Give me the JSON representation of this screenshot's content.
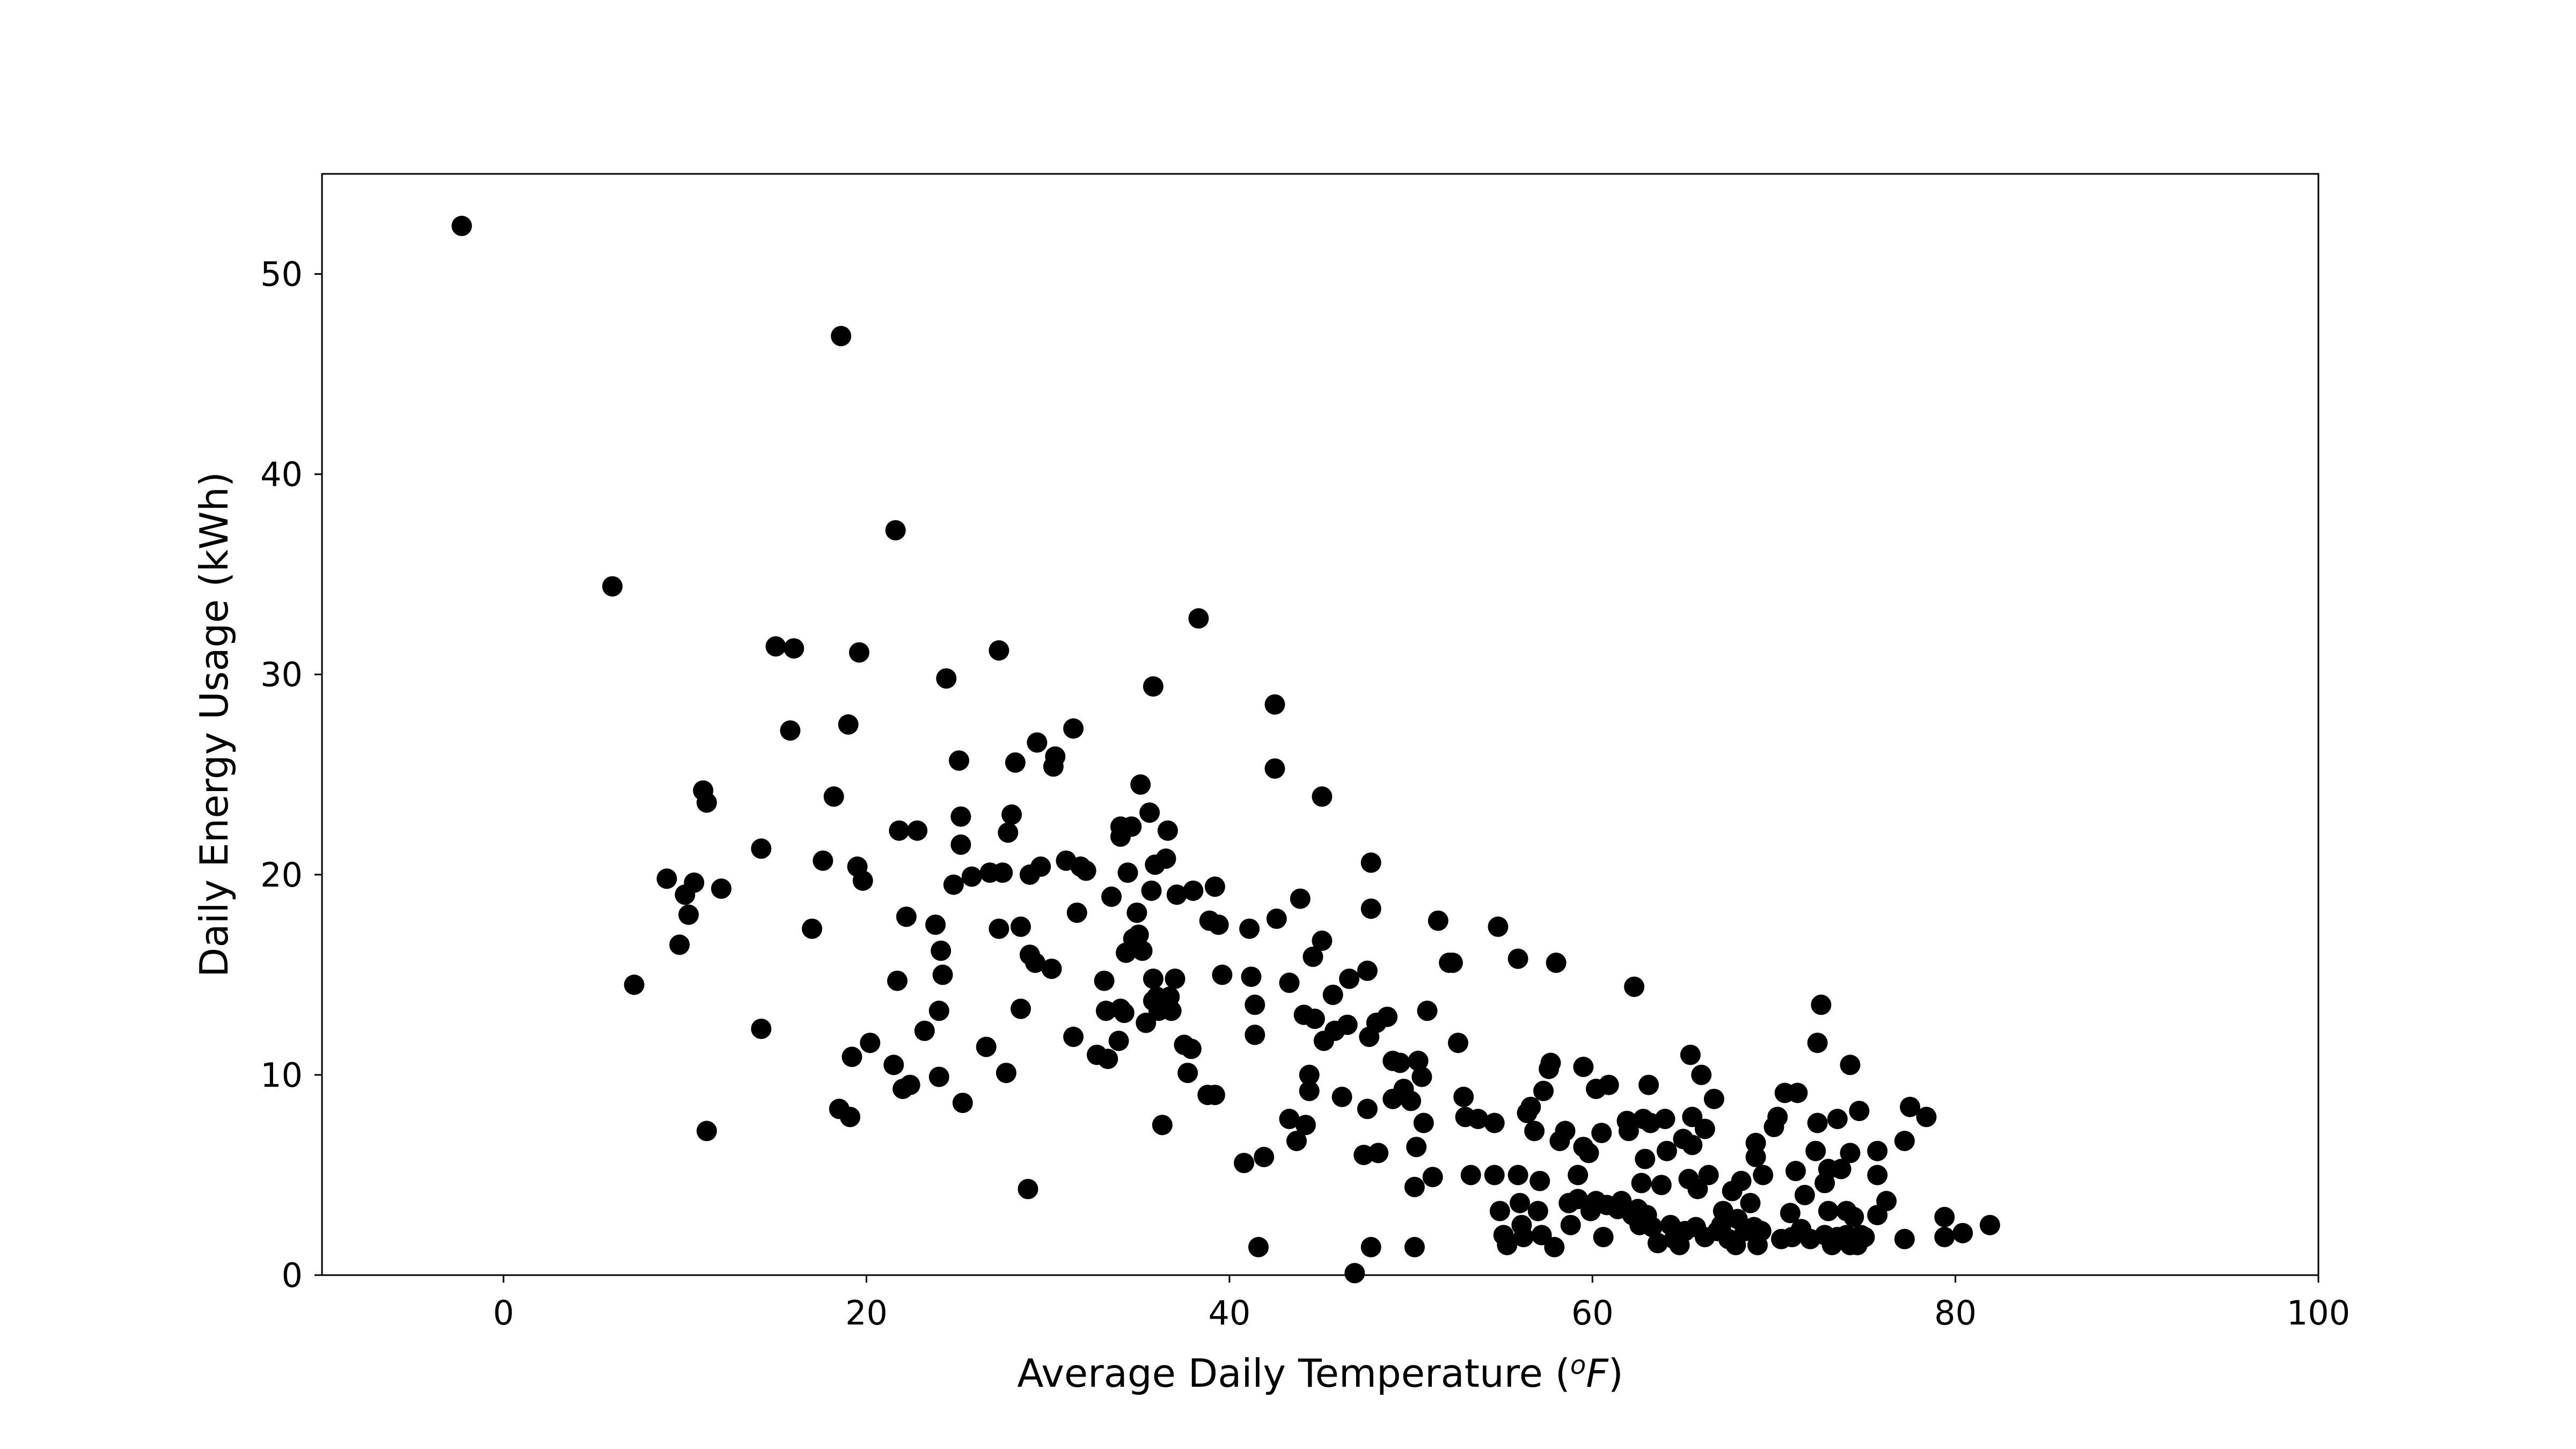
{
  "chart_data": {
    "type": "scatter",
    "title": "",
    "xlabel": "Average Daily Temperature (",
    "xlabel_unit_sup": "o",
    "xlabel_unit": "F",
    "xlabel_close": ")",
    "ylabel": "Daily Energy Usage (kWh)",
    "xlim": [
      -10,
      100
    ],
    "ylim": [
      0,
      55
    ],
    "xticks": [
      0,
      20,
      40,
      60,
      80,
      100
    ],
    "yticks": [
      0,
      10,
      20,
      30,
      40,
      50
    ],
    "grid": false,
    "marker_color": "#000000",
    "points": [
      [
        -2.3,
        52.4
      ],
      [
        6,
        34.4
      ],
      [
        7.2,
        14.5
      ],
      [
        9,
        19.8
      ],
      [
        9.7,
        16.5
      ],
      [
        10,
        19
      ],
      [
        10.2,
        18
      ],
      [
        10.5,
        19.6
      ],
      [
        11,
        24.2
      ],
      [
        11.2,
        23.6
      ],
      [
        11.2,
        7.2
      ],
      [
        12,
        19.3
      ],
      [
        14.2,
        21.3
      ],
      [
        14.2,
        12.3
      ],
      [
        15,
        31.4
      ],
      [
        15.8,
        27.2
      ],
      [
        16,
        31.3
      ],
      [
        17,
        17.3
      ],
      [
        17.6,
        20.7
      ],
      [
        18.2,
        23.9
      ],
      [
        18.5,
        8.3
      ],
      [
        18.6,
        46.9
      ],
      [
        19,
        27.5
      ],
      [
        19.1,
        7.9
      ],
      [
        19.2,
        10.9
      ],
      [
        19.5,
        20.4
      ],
      [
        19.6,
        31.1
      ],
      [
        19.8,
        19.7
      ],
      [
        20.2,
        11.6
      ],
      [
        21.5,
        10.5
      ],
      [
        21.6,
        37.2
      ],
      [
        21.7,
        14.7
      ],
      [
        21.8,
        22.2
      ],
      [
        22,
        9.3
      ],
      [
        22.2,
        17.9
      ],
      [
        22.4,
        9.5
      ],
      [
        22.8,
        22.2
      ],
      [
        23.2,
        12.2
      ],
      [
        23.8,
        17.5
      ],
      [
        24,
        13.2
      ],
      [
        24.1,
        16.2
      ],
      [
        24.2,
        15
      ],
      [
        24,
        9.9
      ],
      [
        24.4,
        29.8
      ],
      [
        24.8,
        19.5
      ],
      [
        25.1,
        25.7
      ],
      [
        25.2,
        22.9
      ],
      [
        25.2,
        21.5
      ],
      [
        25.3,
        8.6
      ],
      [
        25.8,
        19.9
      ],
      [
        26.6,
        11.4
      ],
      [
        26.8,
        20.1
      ],
      [
        27.3,
        31.2
      ],
      [
        27.3,
        17.3
      ],
      [
        27.5,
        20.1
      ],
      [
        27.7,
        10.1
      ],
      [
        27.8,
        22.1
      ],
      [
        28,
        23
      ],
      [
        28.2,
        25.6
      ],
      [
        28.5,
        13.3
      ],
      [
        28.5,
        17.4
      ],
      [
        28.9,
        4.3
      ],
      [
        29,
        20
      ],
      [
        29,
        16
      ],
      [
        29.3,
        15.6
      ],
      [
        29.4,
        26.6
      ],
      [
        29.6,
        20.4
      ],
      [
        30.2,
        15.3
      ],
      [
        30.3,
        25.4
      ],
      [
        30.4,
        25.9
      ],
      [
        31,
        20.7
      ],
      [
        31.4,
        27.3
      ],
      [
        31.4,
        11.9
      ],
      [
        31.6,
        18.1
      ],
      [
        31.8,
        20.4
      ],
      [
        32.1,
        20.2
      ],
      [
        32.7,
        11
      ],
      [
        33.1,
        14.7
      ],
      [
        33.2,
        13.2
      ],
      [
        33.3,
        10.8
      ],
      [
        33.5,
        18.9
      ],
      [
        33.9,
        11.7
      ],
      [
        34,
        22.4
      ],
      [
        34,
        21.9
      ],
      [
        34,
        13.3
      ],
      [
        34.2,
        13.1
      ],
      [
        34.3,
        16.1
      ],
      [
        34.4,
        20.1
      ],
      [
        34.6,
        22.4
      ],
      [
        34.7,
        16.8
      ],
      [
        34.9,
        18.1
      ],
      [
        35,
        17
      ],
      [
        35.1,
        24.5
      ],
      [
        35.2,
        16.2
      ],
      [
        35.4,
        12.6
      ],
      [
        35.6,
        23.1
      ],
      [
        35.7,
        19.2
      ],
      [
        35.8,
        29.4
      ],
      [
        35.8,
        14.8
      ],
      [
        35.8,
        13.7
      ],
      [
        35.9,
        20.5
      ],
      [
        36,
        13.9
      ],
      [
        36.1,
        13.2
      ],
      [
        36.3,
        7.5
      ],
      [
        36.5,
        20.8
      ],
      [
        36.6,
        22.2
      ],
      [
        36.7,
        13.9
      ],
      [
        36.8,
        13.2
      ],
      [
        37,
        14.8
      ],
      [
        37.1,
        19
      ],
      [
        37.5,
        11.5
      ],
      [
        37.7,
        10.1
      ],
      [
        37.9,
        11.3
      ],
      [
        38,
        19.2
      ],
      [
        38.3,
        32.8
      ],
      [
        38.8,
        9
      ],
      [
        38.9,
        17.7
      ],
      [
        39.2,
        19.4
      ],
      [
        39.2,
        9
      ],
      [
        39.4,
        17.5
      ],
      [
        39.6,
        15
      ],
      [
        40.8,
        5.6
      ],
      [
        41.1,
        17.3
      ],
      [
        41.2,
        14.9
      ],
      [
        41.4,
        13.5
      ],
      [
        41.4,
        12
      ],
      [
        41.6,
        1.4
      ],
      [
        41.9,
        5.9
      ],
      [
        42.5,
        28.5
      ],
      [
        42.5,
        25.3
      ],
      [
        42.6,
        17.8
      ],
      [
        43.3,
        14.6
      ],
      [
        43.3,
        7.8
      ],
      [
        43.7,
        6.7
      ],
      [
        43.9,
        18.8
      ],
      [
        44.1,
        13
      ],
      [
        44.2,
        7.5
      ],
      [
        44.4,
        10
      ],
      [
        44.4,
        9.2
      ],
      [
        44.6,
        15.9
      ],
      [
        44.7,
        12.8
      ],
      [
        45.1,
        23.9
      ],
      [
        45.1,
        16.7
      ],
      [
        45.2,
        11.7
      ],
      [
        45.7,
        14
      ],
      [
        45.8,
        12.2
      ],
      [
        46.2,
        8.9
      ],
      [
        46.5,
        12.5
      ],
      [
        46.6,
        14.8
      ],
      [
        46.9,
        0.1
      ],
      [
        47.4,
        6
      ],
      [
        47.6,
        15.2
      ],
      [
        47.6,
        8.3
      ],
      [
        47.7,
        11.9
      ],
      [
        47.8,
        20.6
      ],
      [
        47.8,
        18.3
      ],
      [
        47.8,
        1.4
      ],
      [
        48.1,
        12.6
      ],
      [
        48.2,
        6.1
      ],
      [
        48.7,
        12.9
      ],
      [
        49,
        10.7
      ],
      [
        49,
        8.8
      ],
      [
        49.4,
        10.6
      ],
      [
        49.6,
        9.3
      ],
      [
        50,
        8.7
      ],
      [
        50.2,
        4.4
      ],
      [
        50.3,
        6.4
      ],
      [
        50.2,
        1.4
      ],
      [
        50.4,
        10.7
      ],
      [
        50.6,
        9.9
      ],
      [
        50.7,
        7.6
      ],
      [
        50.9,
        13.2
      ],
      [
        51.2,
        4.9
      ],
      [
        51.5,
        17.7
      ],
      [
        52.1,
        15.6
      ],
      [
        52.3,
        15.6
      ],
      [
        52.6,
        11.6
      ],
      [
        52.9,
        8.9
      ],
      [
        53,
        7.9
      ],
      [
        53.3,
        5
      ],
      [
        53.7,
        7.8
      ],
      [
        54.6,
        5
      ],
      [
        54.6,
        7.6
      ],
      [
        54.8,
        17.4
      ],
      [
        54.9,
        3.2
      ],
      [
        55.1,
        2
      ],
      [
        55.3,
        1.5
      ],
      [
        55.9,
        5
      ],
      [
        55.9,
        15.8
      ],
      [
        56,
        3.6
      ],
      [
        56.1,
        2.5
      ],
      [
        56.2,
        1.9
      ],
      [
        56.4,
        8.1
      ],
      [
        56.6,
        8.4
      ],
      [
        56.8,
        7.2
      ],
      [
        57,
        3.2
      ],
      [
        57.1,
        4.7
      ],
      [
        57.3,
        9.2
      ],
      [
        57.2,
        2
      ],
      [
        57.6,
        10.3
      ],
      [
        57.7,
        10.6
      ],
      [
        57.9,
        1.4
      ],
      [
        58,
        15.6
      ],
      [
        58.2,
        6.7
      ],
      [
        58.5,
        7.2
      ],
      [
        58.7,
        3.6
      ],
      [
        58.8,
        2.5
      ],
      [
        59.2,
        3.8
      ],
      [
        59.2,
        5
      ],
      [
        59.5,
        10.4
      ],
      [
        59.5,
        6.4
      ],
      [
        59.8,
        6.1
      ],
      [
        59.9,
        3.2
      ],
      [
        60.2,
        3.7
      ],
      [
        60.2,
        9.3
      ],
      [
        60.5,
        7.1
      ],
      [
        60.6,
        1.9
      ],
      [
        60.8,
        3.5
      ],
      [
        60.9,
        9.5
      ],
      [
        61.4,
        3.3
      ],
      [
        61.6,
        3.7
      ],
      [
        61.9,
        7.7
      ],
      [
        62,
        7.2
      ],
      [
        62.2,
        3
      ],
      [
        62.3,
        14.4
      ],
      [
        62.5,
        3.3
      ],
      [
        62.6,
        2.5
      ],
      [
        62.7,
        4.6
      ],
      [
        62.8,
        7.8
      ],
      [
        62.9,
        5.8
      ],
      [
        63,
        3
      ],
      [
        63.1,
        9.5
      ],
      [
        63.2,
        7.6
      ],
      [
        63.3,
        2.4
      ],
      [
        63.6,
        1.6
      ],
      [
        63.8,
        4.5
      ],
      [
        64,
        7.8
      ],
      [
        64.1,
        6.2
      ],
      [
        64.3,
        2.5
      ],
      [
        64.5,
        1.8
      ],
      [
        64.8,
        1.5
      ],
      [
        65,
        6.8
      ],
      [
        65.1,
        2.2
      ],
      [
        65.3,
        4.8
      ],
      [
        65.4,
        11
      ],
      [
        65.5,
        6.5
      ],
      [
        65.5,
        7.9
      ],
      [
        65.7,
        2.4
      ],
      [
        65.8,
        4.3
      ],
      [
        66,
        10
      ],
      [
        66.2,
        1.9
      ],
      [
        66.2,
        7.3
      ],
      [
        66.4,
        5
      ],
      [
        66.7,
        8.8
      ],
      [
        66.9,
        2.2
      ],
      [
        67.1,
        2.5
      ],
      [
        67.2,
        3.2
      ],
      [
        67.5,
        1.8
      ],
      [
        67.7,
        4.2
      ],
      [
        67.9,
        1.5
      ],
      [
        68,
        2.8
      ],
      [
        68.2,
        4.7
      ],
      [
        68.4,
        2.2
      ],
      [
        68.7,
        3.6
      ],
      [
        68.9,
        2.4
      ],
      [
        69,
        6.6
      ],
      [
        69,
        5.9
      ],
      [
        69.1,
        1.5
      ],
      [
        69.3,
        2.2
      ],
      [
        69.4,
        5
      ],
      [
        70,
        7.4
      ],
      [
        70.2,
        7.9
      ],
      [
        70.4,
        1.8
      ],
      [
        70.6,
        9.1
      ],
      [
        70.9,
        3.1
      ],
      [
        71,
        1.9
      ],
      [
        71.2,
        5.2
      ],
      [
        71.3,
        9.1
      ],
      [
        71.5,
        2.3
      ],
      [
        71.7,
        4
      ],
      [
        72,
        1.8
      ],
      [
        72.3,
        6.2
      ],
      [
        72.4,
        11.6
      ],
      [
        72.4,
        7.6
      ],
      [
        72.6,
        13.5
      ],
      [
        72.8,
        2
      ],
      [
        72.8,
        4.6
      ],
      [
        73,
        3.2
      ],
      [
        73,
        5.3
      ],
      [
        73.2,
        1.5
      ],
      [
        73.5,
        7.8
      ],
      [
        73.5,
        1.9
      ],
      [
        73.7,
        5.3
      ],
      [
        74,
        2
      ],
      [
        74,
        3.2
      ],
      [
        74.2,
        1.5
      ],
      [
        74.2,
        6.1
      ],
      [
        74.2,
        10.5
      ],
      [
        74.4,
        2.9
      ],
      [
        74.6,
        1.5
      ],
      [
        74.7,
        8.2
      ],
      [
        74.8,
        2
      ],
      [
        75,
        1.9
      ],
      [
        75.7,
        3
      ],
      [
        75.7,
        5
      ],
      [
        75.7,
        6.2
      ],
      [
        76.2,
        3.7
      ],
      [
        77.2,
        1.8
      ],
      [
        77.2,
        6.7
      ],
      [
        77.5,
        8.4
      ],
      [
        78.4,
        7.9
      ],
      [
        79.4,
        2.9
      ],
      [
        79.4,
        1.9
      ],
      [
        80.4,
        2.1
      ],
      [
        81.9,
        2.5
      ]
    ]
  }
}
